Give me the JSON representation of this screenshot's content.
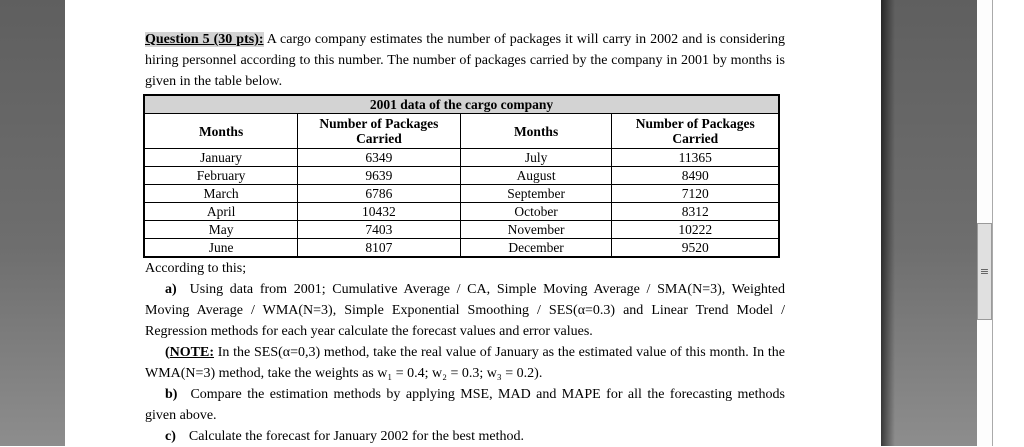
{
  "document": {
    "question_label": "Question 5 (30 pts):",
    "intro_text": " A cargo company estimates the number of packages it will carry in 2002 and is considering hiring personnel according to this number. The number of packages carried by the company in 2001 by months is given in the table below.",
    "table": {
      "title": "2001 data of the cargo company",
      "columns": [
        "Months",
        "Number of Packages Carried",
        "Months",
        "Number of Packages Carried"
      ],
      "rows": [
        [
          "January",
          "6349",
          "July",
          "11365"
        ],
        [
          "February",
          "9639",
          "August",
          "8490"
        ],
        [
          "March",
          "6786",
          "September",
          "7120"
        ],
        [
          "April",
          "10432",
          "October",
          "8312"
        ],
        [
          "May",
          "7403",
          "November",
          "10222"
        ],
        [
          "June",
          "8107",
          "December",
          "9520"
        ]
      ]
    },
    "according_line": "According to this;",
    "item_a_label": "a)",
    "item_a_text": "Using data from 2001; Cumulative Average / CA, Simple Moving Average / SMA(N=3), Weighted Moving Average / WMA(N=3), Simple Exponential Smoothing / SES(α=0.3) and Linear Trend Model / Regression methods for each year calculate the forecast values and error values.",
    "note_open": "(",
    "note_label": "NOTE:",
    "note_text": " In the SES(α=0,3) method, take the real value of January as the estimated value of this month. In the WMA(N=3) method, take the weights as w₁ = 0.4; w₂ = 0.3; w₃ = 0.2).",
    "item_b_label": "b)",
    "item_b_text": "Compare the estimation methods by applying MSE, MAD and MAPE for all the forecasting methods given above.",
    "item_c_label": "c)",
    "item_c_text": "Calculate the forecast for January 2002 for the best method."
  },
  "icons": {
    "scrollbar_grip": "≡"
  },
  "colors": {
    "highlight": "#d3d3d3",
    "table_title_bg": "#d3d3d3",
    "surround_top": "#5f5f5f",
    "surround_bottom": "#8d8d8d"
  }
}
